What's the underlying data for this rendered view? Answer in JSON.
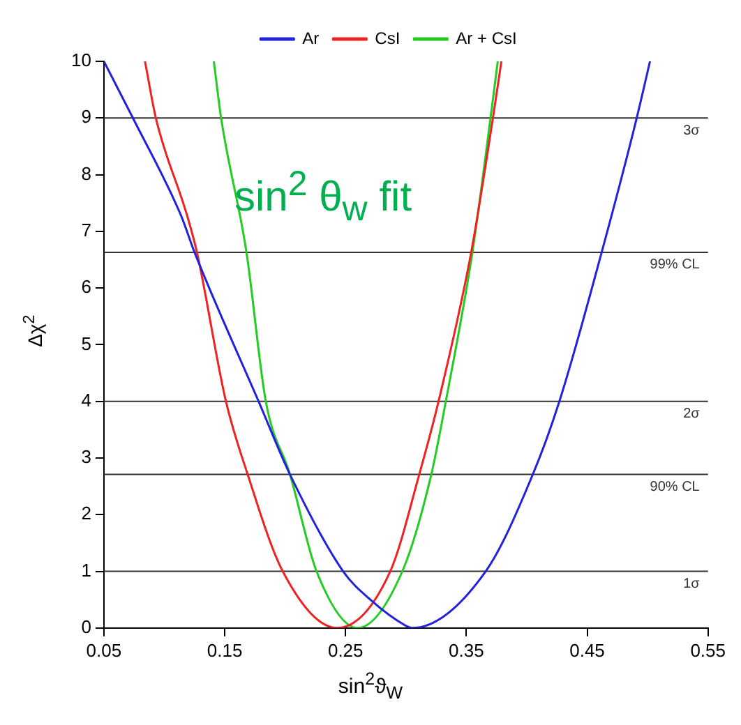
{
  "chart_data": {
    "type": "line",
    "xlabel": "sin$^{2}$ϑ$_{W}$",
    "ylabel": "Δχ$^{2}$",
    "annotations": [
      "sin$^{2}$ θ$_{w}$  fit"
    ],
    "xlim": [
      0.05,
      0.55
    ],
    "xticks": [
      0.05,
      0.15,
      0.25,
      0.35,
      0.45,
      0.55
    ],
    "ylim": [
      0,
      10
    ],
    "yticks": [
      0,
      1,
      2,
      3,
      4,
      5,
      6,
      7,
      8,
      9,
      10
    ],
    "grid": false,
    "legend": "top",
    "marker": "none",
    "line_style": "solid",
    "ref_lines": [
      {
        "axis": "y",
        "value": 1,
        "label": "1σ",
        "color": "#333333"
      },
      {
        "axis": "y",
        "value": 2.71,
        "label": "90% CL",
        "color": "#333333"
      },
      {
        "axis": "y",
        "value": 4,
        "label": "2σ",
        "color": "#333333"
      },
      {
        "axis": "y",
        "value": 6.63,
        "label": "99% CL",
        "color": "#333333"
      },
      {
        "axis": "y",
        "value": 9,
        "label": "3σ",
        "color": "#333333"
      }
    ],
    "series": [
      {
        "name": "Ar",
        "color": "#2222dd",
        "x": [
          0.05,
          0.074,
          0.114,
          0.125,
          0.178,
          0.204,
          0.248,
          0.271,
          0.299,
          0.305,
          0.366,
          0.405,
          0.427,
          0.462,
          0.491,
          0.502
        ],
        "values": [
          10,
          9,
          7.27,
          6.63,
          4,
          2.71,
          1,
          0.49,
          0.05,
          0,
          1,
          2.71,
          4,
          6.63,
          9,
          10
        ]
      },
      {
        "name": "CsI",
        "color": "#ee2222",
        "x": [
          0.084,
          0.093,
          0.119,
          0.127,
          0.151,
          0.169,
          0.198,
          0.243,
          0.287,
          0.311,
          0.327,
          0.354,
          0.372,
          0.379
        ],
        "values": [
          10,
          9,
          7.27,
          6.63,
          4,
          2.71,
          1,
          0,
          1,
          2.71,
          4,
          6.63,
          9,
          10
        ]
      },
      {
        "name": "Ar + CsI",
        "color": "#22cc22",
        "x": [
          0.141,
          0.147,
          0.168,
          0.184,
          0.204,
          0.226,
          0.26,
          0.297,
          0.321,
          0.333,
          0.355,
          0.37,
          0.376
        ],
        "values": [
          10,
          9,
          6.63,
          4,
          2.71,
          1,
          0,
          1,
          2.71,
          4,
          6.63,
          9,
          10
        ]
      }
    ]
  }
}
